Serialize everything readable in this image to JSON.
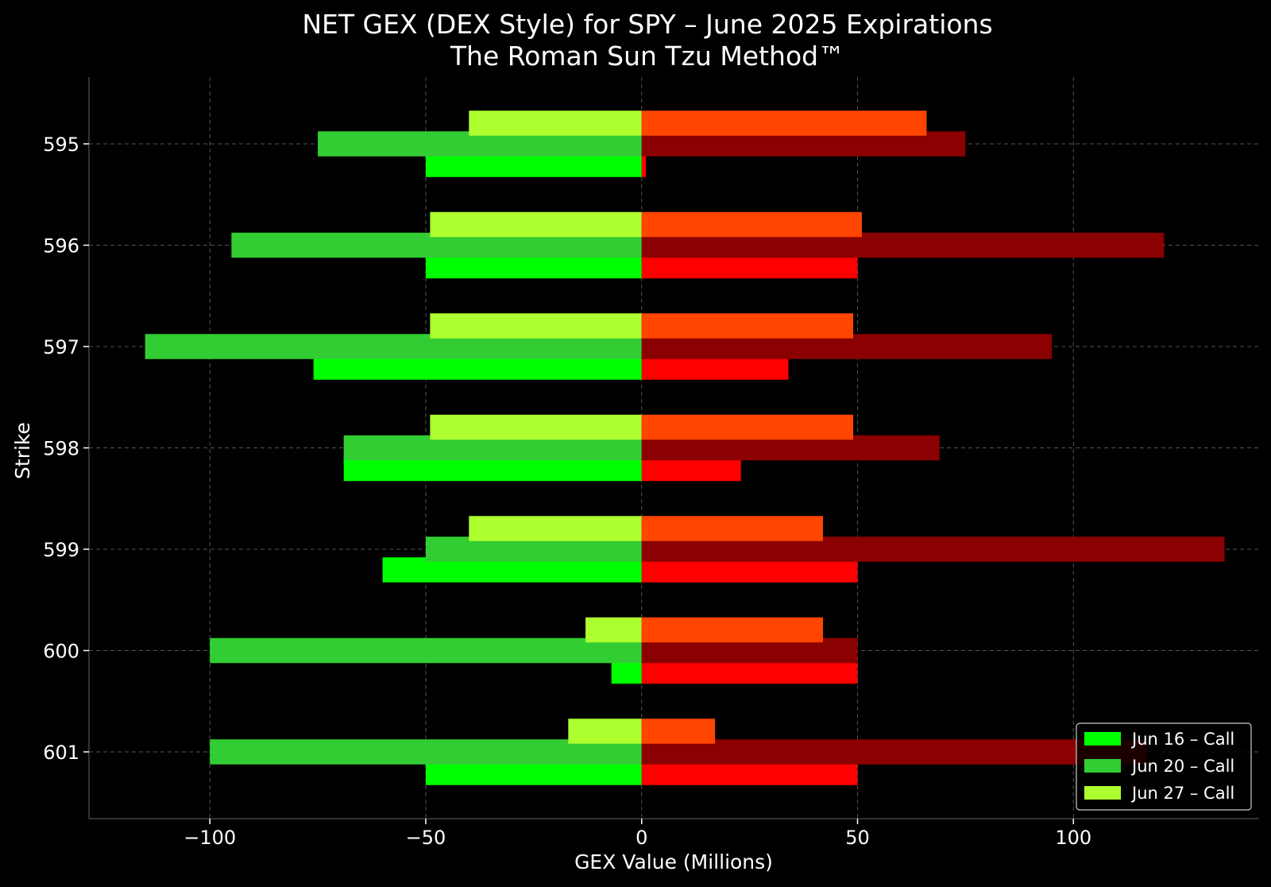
{
  "chart_data": {
    "type": "bar",
    "orientation": "horizontal",
    "title": "NET GEX (DEX Style) for SPY – June 2025 Expirations",
    "subtitle": "The Roman Sun Tzu Method™",
    "xlabel": "GEX Value (Millions)",
    "ylabel": "Strike",
    "xlim": [
      -128,
      143
    ],
    "x_ticks": [
      -100,
      -50,
      0,
      50,
      100
    ],
    "x_tick_labels": [
      "−100",
      "−50",
      "0",
      "50",
      "100"
    ],
    "grid": true,
    "legend_position": "bottom-right",
    "categories": [
      "595",
      "596",
      "597",
      "598",
      "599",
      "600",
      "601"
    ],
    "series": [
      {
        "name": "Jun 16 – Call",
        "side": "call",
        "slot": 0,
        "color": "#00ff00",
        "in_legend": true,
        "values": [
          -50,
          -50,
          -76,
          -69,
          -60,
          -7,
          -50
        ]
      },
      {
        "name": "Jun 20 – Call",
        "side": "call",
        "slot": 1,
        "color": "#32cd32",
        "in_legend": true,
        "values": [
          -75,
          -95,
          -115,
          -69,
          -50,
          -100,
          -100
        ]
      },
      {
        "name": "Jun 27 – Call",
        "side": "call",
        "slot": 2,
        "color": "#adff2f",
        "in_legend": true,
        "values": [
          -40,
          -49,
          -49,
          -49,
          -40,
          -13,
          -17
        ]
      },
      {
        "name": "",
        "side": "put",
        "slot": 0,
        "color": "#ff0000",
        "in_legend": false,
        "values": [
          1,
          50,
          34,
          23,
          50,
          50,
          50
        ]
      },
      {
        "name": "",
        "side": "put",
        "slot": 1,
        "color": "#8b0000",
        "in_legend": false,
        "values": [
          75,
          121,
          95,
          69,
          135,
          50,
          117
        ]
      },
      {
        "name": "",
        "side": "put",
        "slot": 2,
        "color": "#ff4500",
        "in_legend": false,
        "values": [
          66,
          51,
          49,
          49,
          42,
          42,
          17
        ]
      }
    ]
  }
}
